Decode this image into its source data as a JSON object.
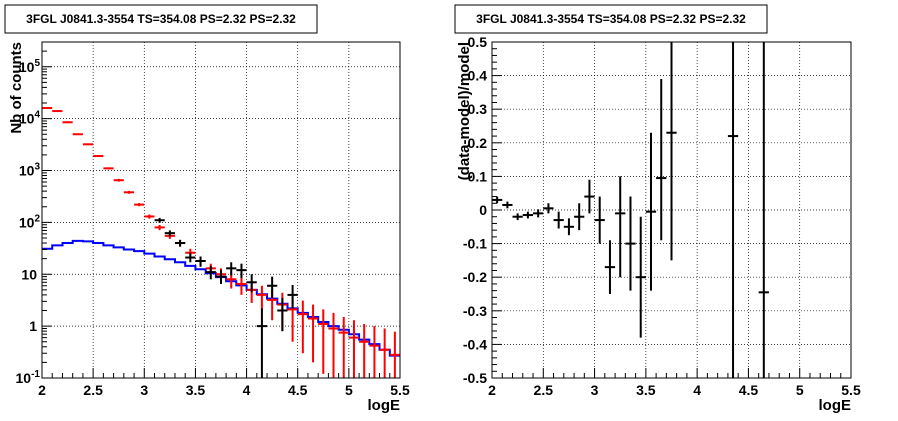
{
  "chart_data": [
    {
      "type": "line",
      "title": "3FGL J0841.3-3554 TS=354.08 PS=2.32 PS=2.32",
      "xlabel": "logE",
      "ylabel": "Nb of counts",
      "xlim": [
        2,
        5.5
      ],
      "ylim": [
        0.1,
        300000
      ],
      "yscale": "log",
      "grid": true,
      "x_ticks": [
        "2",
        "2.5",
        "3",
        "3.5",
        "4",
        "4.5",
        "5",
        "5.5"
      ],
      "y_ticks": [
        "10^-1",
        "1",
        "10",
        "10^2",
        "10^3",
        "10^4",
        "10^5"
      ],
      "y_tick_values": [
        0.1,
        1,
        10,
        100,
        1000,
        10000,
        100000
      ],
      "series": [
        {
          "type": "step",
          "color": "#0000ff",
          "bin_edges": [
            2.0,
            2.1,
            2.2,
            2.3,
            2.4,
            2.5,
            2.6,
            2.7,
            2.8,
            2.9,
            3.0,
            3.1,
            3.2,
            3.3,
            3.4,
            3.5,
            3.6,
            3.7,
            3.8,
            3.9,
            4.0,
            4.1,
            4.2,
            4.3,
            4.4,
            4.5,
            4.6,
            4.7,
            4.8,
            4.9,
            5.0,
            5.1,
            5.2,
            5.3,
            5.4,
            5.5
          ],
          "values": [
            31,
            36,
            40,
            44,
            43,
            40,
            36,
            33,
            30,
            28,
            25,
            22,
            19.5,
            17,
            14.5,
            12.5,
            10.5,
            8.8,
            7.3,
            6.1,
            5.0,
            4.1,
            3.4,
            2.7,
            2.2,
            1.8,
            1.5,
            1.2,
            1.0,
            0.85,
            0.7,
            0.55,
            0.45,
            0.35,
            0.27
          ]
        },
        {
          "type": "errorbar",
          "color": "#ff0000",
          "x": [
            2.05,
            2.15,
            2.25,
            2.35,
            2.45,
            2.55,
            2.65,
            2.75,
            2.85,
            2.95,
            3.05,
            3.15,
            3.25,
            3.35,
            3.45,
            3.55,
            3.65,
            3.75,
            3.85,
            3.95,
            4.05,
            4.15,
            4.25,
            4.35,
            4.45,
            4.55,
            4.65,
            4.75,
            4.85,
            4.95,
            5.05,
            5.15,
            5.25,
            5.35,
            5.45
          ],
          "y": [
            16000,
            14000,
            8500,
            5000,
            3200,
            1900,
            1100,
            650,
            380,
            220,
            130,
            80,
            55,
            40,
            26,
            18,
            13,
            10,
            8,
            6.5,
            5,
            4,
            3.2,
            2.6,
            2.1,
            1.7,
            1.4,
            1.1,
            0.9,
            0.75,
            0.6,
            0.5,
            0.42,
            0.35,
            0.28
          ],
          "y_low": [
            15700,
            13700,
            8300,
            4850,
            3100,
            1830,
            1050,
            610,
            355,
            205,
            118,
            71,
            48,
            34,
            21,
            14,
            10,
            7,
            5.3,
            4.0,
            2.8,
            2.0,
            1.3,
            0.8,
            0.5,
            0.3,
            0.2,
            0.12,
            0.1,
            0.1,
            0.1,
            0.1,
            0.1,
            0.1,
            0.1
          ],
          "y_high": [
            16300,
            14300,
            8700,
            5150,
            3300,
            1970,
            1150,
            690,
            405,
            235,
            142,
            89,
            62,
            46,
            31,
            22,
            16,
            13,
            10.7,
            9.0,
            7.2,
            6.0,
            5.1,
            4.4,
            3.7,
            3.1,
            2.6,
            2.1,
            1.8,
            1.5,
            1.3,
            1.1,
            1.0,
            0.9,
            0.78
          ]
        },
        {
          "type": "errorbar",
          "color": "#000000",
          "x": [
            3.15,
            3.25,
            3.35,
            3.45,
            3.55,
            3.65,
            3.75,
            3.85,
            3.95,
            4.05,
            4.15,
            4.25,
            4.35,
            4.45
          ],
          "y": [
            110,
            62,
            40,
            21,
            18,
            11,
            9,
            13,
            12,
            7,
            1,
            6,
            2,
            4
          ],
          "y_low": [
            98,
            54,
            34,
            17,
            14,
            8,
            6.5,
            9.5,
            8.5,
            4.5,
            0.1,
            3.5,
            0.8,
            2.2
          ],
          "y_high": [
            122,
            70,
            46,
            26,
            22,
            14.5,
            12,
            17,
            16,
            10,
            2.2,
            9,
            3.5,
            6.2
          ]
        }
      ]
    },
    {
      "type": "scatter",
      "title": "3FGL J0841.3-3554 TS=354.08 PS=2.32 PS=2.32",
      "xlabel": "logE",
      "ylabel": "(data-model)/model",
      "xlim": [
        2,
        5.5
      ],
      "ylim": [
        -0.5,
        0.5
      ],
      "grid": true,
      "x_ticks": [
        "2",
        "2.5",
        "3",
        "3.5",
        "4",
        "4.5",
        "5",
        "5.5"
      ],
      "y_ticks": [
        "-0.5",
        "-0.4",
        "-0.3",
        "-0.2",
        "-0.1",
        "0",
        "0.1",
        "0.2",
        "0.3",
        "0.4",
        "0.5"
      ],
      "y_tick_values": [
        -0.5,
        -0.4,
        -0.3,
        -0.2,
        -0.1,
        0,
        0.1,
        0.2,
        0.3,
        0.4,
        0.5
      ],
      "series": [
        {
          "type": "errorbar",
          "color": "#000000",
          "x": [
            2.05,
            2.15,
            2.25,
            2.35,
            2.45,
            2.55,
            2.65,
            2.75,
            2.85,
            2.95,
            3.05,
            3.15,
            3.25,
            3.35,
            3.45,
            3.55,
            3.65,
            3.75,
            4.35,
            4.65
          ],
          "y": [
            0.03,
            0.015,
            -0.02,
            -0.015,
            -0.01,
            0.005,
            -0.03,
            -0.05,
            -0.02,
            0.04,
            -0.03,
            -0.17,
            -0.01,
            -0.1,
            -0.2,
            -0.005,
            0.095,
            0.23,
            0.22,
            -0.245
          ],
          "y_low": [
            0.02,
            0.005,
            -0.03,
            -0.025,
            -0.022,
            -0.01,
            -0.055,
            -0.075,
            -0.06,
            -0.01,
            -0.1,
            -0.25,
            -0.2,
            -0.24,
            -0.38,
            -0.24,
            -0.09,
            -0.15,
            -0.5,
            -0.5
          ],
          "y_high": [
            0.04,
            0.025,
            -0.01,
            -0.005,
            0.002,
            0.02,
            -0.005,
            -0.025,
            0.02,
            0.09,
            0.04,
            -0.09,
            0.1,
            0.04,
            -0.02,
            0.23,
            0.39,
            0.5,
            0.5,
            0.5
          ]
        }
      ]
    }
  ]
}
